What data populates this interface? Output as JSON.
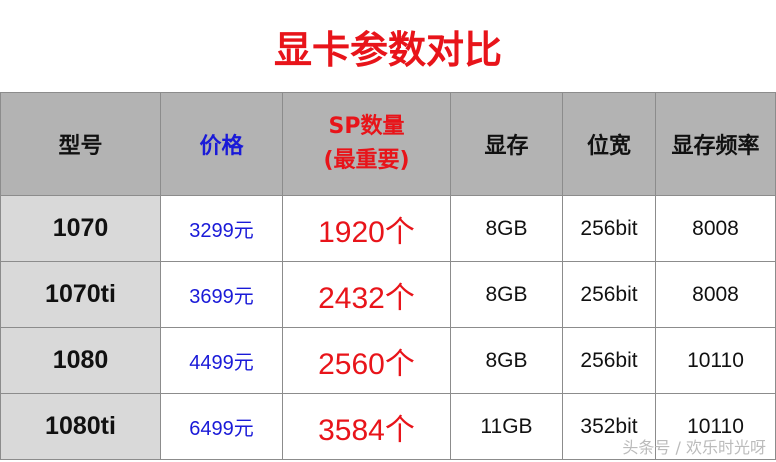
{
  "title": "显卡参数对比",
  "headers": {
    "model": "型号",
    "price": "价格",
    "sp_line1": "SP数量",
    "sp_line2": "(最重要)",
    "memory": "显存",
    "bus": "位宽",
    "freq": "显存频率"
  },
  "rows": [
    {
      "model": "1070",
      "price": "3299元",
      "sp": "1920个",
      "memory": "8GB",
      "bus": "256bit",
      "freq": "8008"
    },
    {
      "model": "1070ti",
      "price": "3699元",
      "sp": "2432个",
      "memory": "8GB",
      "bus": "256bit",
      "freq": "8008"
    },
    {
      "model": "1080",
      "price": "4499元",
      "sp": "2560个",
      "memory": "8GB",
      "bus": "256bit",
      "freq": "10110"
    },
    {
      "model": "1080ti",
      "price": "6499元",
      "sp": "3584个",
      "memory": "11GB",
      "bus": "352bit",
      "freq": "10110"
    }
  ],
  "watermark": "头条号 / 欢乐时光呀",
  "colors": {
    "title": "#e8141a",
    "price": "#1a1ad8",
    "sp": "#e8141a",
    "header_bg": "#b3b3b3",
    "model_bg": "#d9d9d9"
  }
}
